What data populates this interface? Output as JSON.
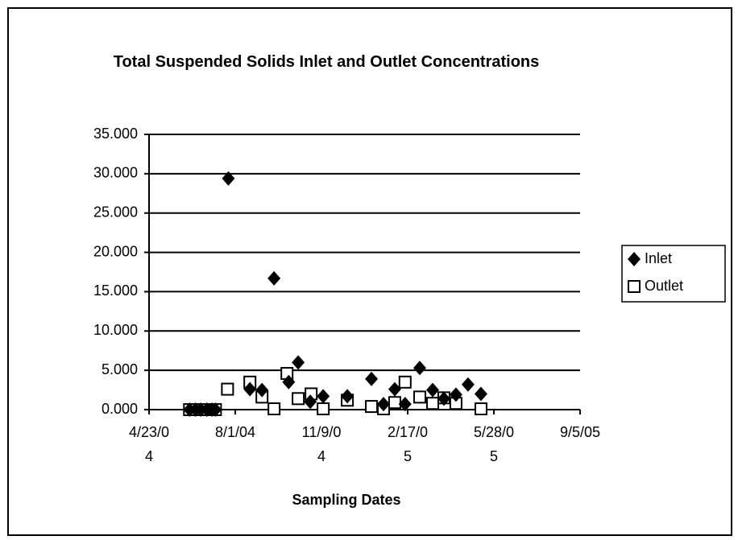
{
  "chart_data": {
    "type": "scatter",
    "title": "Total Suspended Solids Inlet and Outlet Concentrations",
    "xlabel": "Sampling Dates",
    "xlim": [
      "2004-04-23",
      "2005-09-05"
    ],
    "xticks": [
      {
        "value": "2004-04-23",
        "label": "4/23/04"
      },
      {
        "value": "2004-08-01",
        "label": "8/1/04"
      },
      {
        "value": "2004-11-09",
        "label": "11/9/04"
      },
      {
        "value": "2005-02-17",
        "label": "2/17/05"
      },
      {
        "value": "2005-05-28",
        "label": "5/28/05"
      },
      {
        "value": "2005-09-05",
        "label": "9/5/05"
      }
    ],
    "ylim": [
      0,
      35
    ],
    "yticks": [
      {
        "value": 0,
        "label": "0.000"
      },
      {
        "value": 5,
        "label": "5.000"
      },
      {
        "value": 10,
        "label": "10.000"
      },
      {
        "value": 15,
        "label": "15.000"
      },
      {
        "value": 20,
        "label": "20.000"
      },
      {
        "value": 25,
        "label": "25.000"
      },
      {
        "value": 30,
        "label": "30.000"
      },
      {
        "value": 35,
        "label": "35.000"
      }
    ],
    "grid": true,
    "legend": "right",
    "series": [
      {
        "name": "Inlet",
        "color": "#000000",
        "marker": "diamond",
        "x": [
          "2004-06-09",
          "2004-06-16",
          "2004-06-22",
          "2004-06-29",
          "2004-07-05",
          "2004-07-09",
          "2004-07-24",
          "2004-08-18",
          "2004-09-01",
          "2004-09-15",
          "2004-10-02",
          "2004-10-13",
          "2004-10-27",
          "2004-11-11",
          "2004-12-09",
          "2005-01-06",
          "2005-01-20",
          "2005-02-02",
          "2005-02-14",
          "2005-03-03",
          "2005-03-18",
          "2005-03-31",
          "2005-04-14",
          "2005-04-28",
          "2005-05-13"
        ],
        "values": [
          0,
          0,
          0,
          0,
          0,
          0,
          29.4,
          2.6,
          2.5,
          16.7,
          3.5,
          6.0,
          1.0,
          1.7,
          1.7,
          3.9,
          0.7,
          2.6,
          0.7,
          5.3,
          2.5,
          1.4,
          1.9,
          3.2,
          2.0
        ]
      },
      {
        "name": "Outlet",
        "color": "#000000",
        "marker": "square",
        "x": [
          "2004-06-09",
          "2004-06-16",
          "2004-06-22",
          "2004-06-29",
          "2004-07-05",
          "2004-07-09",
          "2004-07-23",
          "2004-08-18",
          "2004-09-01",
          "2004-09-15",
          "2004-09-30",
          "2004-10-13",
          "2004-10-28",
          "2004-11-11",
          "2004-12-09",
          "2005-01-06",
          "2005-01-20",
          "2005-02-02",
          "2005-02-14",
          "2005-03-03",
          "2005-03-18",
          "2005-03-31",
          "2005-04-14",
          "2005-05-13"
        ],
        "values": [
          0,
          0,
          0,
          0,
          0,
          0,
          2.6,
          3.5,
          1.6,
          0.1,
          4.6,
          1.4,
          2.0,
          0.1,
          1.2,
          0.4,
          0.1,
          0.9,
          3.5,
          1.6,
          0.8,
          1.5,
          0.8,
          0.1
        ]
      }
    ]
  }
}
